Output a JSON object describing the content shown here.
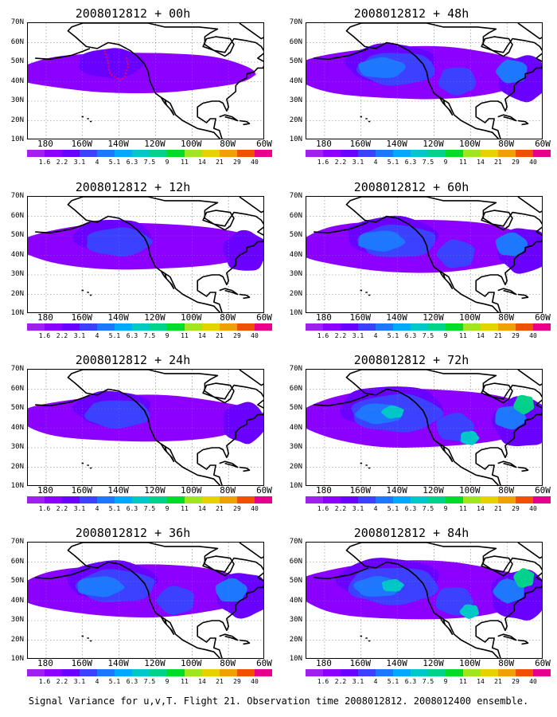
{
  "panels": [
    {
      "title": "2008012812 + 00h",
      "intensity": 1
    },
    {
      "title": "2008012812 + 48h",
      "intensity": 3
    },
    {
      "title": "2008012812 + 12h",
      "intensity": 2
    },
    {
      "title": "2008012812 + 60h",
      "intensity": 3
    },
    {
      "title": "2008012812 + 24h",
      "intensity": 2
    },
    {
      "title": "2008012812 + 72h",
      "intensity": 4
    },
    {
      "title": "2008012812 + 36h",
      "intensity": 3
    },
    {
      "title": "2008012812 + 84h",
      "intensity": 4
    }
  ],
  "lat_labels": [
    "70N",
    "60N",
    "50N",
    "40N",
    "30N",
    "20N",
    "10N"
  ],
  "lon_labels": [
    "180",
    "160W",
    "140W",
    "120W",
    "100W",
    "80W",
    "60W"
  ],
  "colorbar": {
    "labels": [
      "1.6",
      "2.2",
      "3.1",
      "4",
      "5.1",
      "6.3",
      "7.5",
      "9",
      "11",
      "14",
      "21",
      "29",
      "40"
    ],
    "colors": [
      "#a020f0",
      "#8c00ff",
      "#6a00ff",
      "#3c40ff",
      "#1e78ff",
      "#00a8ff",
      "#00c8c8",
      "#00d28c",
      "#00dc28",
      "#a0e61e",
      "#e6d200",
      "#f0a000",
      "#f05000",
      "#e6008c"
    ]
  },
  "footer": "Signal Variance for u,v,T. Flight 21. Observation time 2008012812. 2008012400 ensemble."
}
